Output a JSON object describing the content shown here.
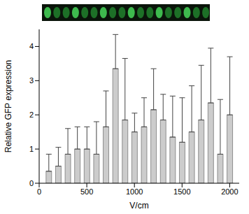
{
  "chart_data": {
    "type": "bar",
    "x_label": "V/cm",
    "y_label": "Relative GFP expression",
    "x": [
      100,
      200,
      300,
      400,
      500,
      600,
      700,
      800,
      900,
      1000,
      1100,
      1200,
      1300,
      1400,
      1500,
      1600,
      1700,
      1800,
      1900,
      2000
    ],
    "values": [
      0.35,
      0.5,
      0.85,
      1.0,
      1.0,
      0.85,
      1.65,
      3.35,
      1.85,
      1.5,
      1.65,
      2.15,
      1.85,
      1.35,
      1.2,
      1.5,
      1.85,
      2.35,
      0.85,
      2.0
    ],
    "error": [
      0.5,
      0.55,
      0.75,
      0.65,
      0.65,
      0.95,
      1.05,
      1.0,
      1.8,
      0.55,
      0.85,
      1.2,
      0.75,
      1.2,
      1.3,
      1.35,
      1.6,
      1.6,
      1.6,
      1.7
    ],
    "color": "#cccccc",
    "xlim": [
      0,
      2100
    ],
    "xticks": [
      0,
      500,
      1000,
      1500,
      2000
    ],
    "ylim": [
      0,
      4.5
    ],
    "yticks": [
      0,
      1,
      2,
      3,
      4
    ],
    "grid": false
  }
}
